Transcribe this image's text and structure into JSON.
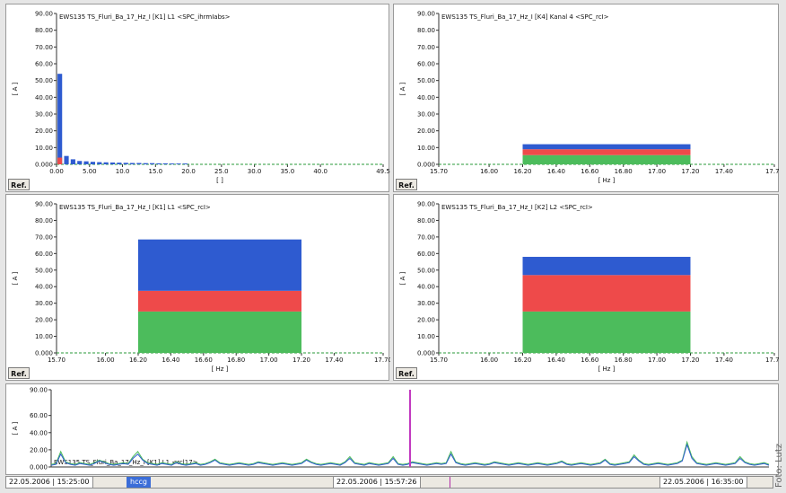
{
  "colors": {
    "blue": "#2e5bd0",
    "red": "#ee4a4a",
    "green": "#4cbc5c",
    "cursor": "#c23ac0",
    "zero_line": "#2a9a3a"
  },
  "ref_label": "Ref.",
  "side_credit": "Foto: Lutz",
  "panels": [
    {
      "id": "harmonics",
      "title": "EWS135  TS_Fluri_Ba_17_Hz_I  [K1] L1   <SPC_ihrmIabs>",
      "ylabel": "[ A ]",
      "xlabel": "[ ]",
      "yticks": [
        "90.00",
        "80.00",
        "70.00",
        "60.00",
        "50.00",
        "40.00",
        "30.00",
        "20.00",
        "10.00",
        "0.000"
      ],
      "xticks": [
        "0.00",
        "5.00",
        "10.0",
        "15.0",
        "20.0",
        "25.0",
        "30.0",
        "35.0",
        "40.0",
        "49.5"
      ],
      "xlim": [
        0,
        49.5
      ],
      "ylim": [
        0,
        90
      ],
      "chart_data": {
        "type": "bar",
        "x": [
          0.5,
          1.5,
          2.5,
          3.5,
          4.5,
          5.5,
          6.5,
          7.5,
          8.5,
          9.5,
          10.5,
          11.5,
          12.5,
          13.5,
          14.5,
          15.5,
          16.5,
          17.5,
          18.5,
          19.5
        ],
        "values": [
          54,
          5,
          3,
          2,
          1.8,
          1.5,
          1.3,
          1.2,
          1.1,
          1.0,
          0.9,
          0.8,
          0.8,
          0.7,
          0.7,
          0.6,
          0.6,
          0.5,
          0.5,
          0.5
        ],
        "ylim": [
          0,
          90
        ]
      }
    },
    {
      "id": "kanal4",
      "title": "EWS135  TS_Fluri_Ba_17_Hz_I  [K4] Kanal 4   <SPC_rcI>",
      "ylabel": "[ A ]",
      "xlabel": "[ Hz ]",
      "yticks": [
        "90.00",
        "80.00",
        "70.00",
        "60.00",
        "50.00",
        "40.00",
        "30.00",
        "20.00",
        "10.00",
        "0.000"
      ],
      "xticks": [
        "15.70",
        "16.00",
        "16.20",
        "16.40",
        "16.60",
        "16.80",
        "17.00",
        "17.20",
        "17.40",
        "17.70"
      ],
      "xlim": [
        15.7,
        17.7
      ],
      "ylim": [
        0,
        90
      ],
      "chart_data": {
        "type": "bar",
        "x_range": [
          16.2,
          17.2
        ],
        "stack": [
          {
            "color": "green",
            "value": 5.5
          },
          {
            "color": "red",
            "value": 3.5
          },
          {
            "color": "blue",
            "value": 3
          }
        ],
        "ylim": [
          0,
          90
        ]
      }
    },
    {
      "id": "l1",
      "title": "EWS135  TS_Fluri_Ba_17_Hz_I  [K1] L1   <SPC_rcI>",
      "ylabel": "[ A ]",
      "xlabel": "[ Hz ]",
      "yticks": [
        "90.00",
        "80.00",
        "70.00",
        "60.00",
        "50.00",
        "40.00",
        "30.00",
        "20.00",
        "10.00",
        "0.000"
      ],
      "xticks": [
        "15.70",
        "16.00",
        "16.20",
        "16.40",
        "16.60",
        "16.80",
        "17.00",
        "17.20",
        "17.40",
        "17.70"
      ],
      "xlim": [
        15.7,
        17.7
      ],
      "ylim": [
        0,
        90
      ],
      "chart_data": {
        "type": "bar",
        "x_range": [
          16.2,
          17.2
        ],
        "stack": [
          {
            "color": "green",
            "value": 25
          },
          {
            "color": "red",
            "value": 12.5
          },
          {
            "color": "blue",
            "value": 31
          }
        ],
        "ylim": [
          0,
          90
        ]
      }
    },
    {
      "id": "l2",
      "title": "EWS135  TS_Fluri_Ba_17_Hz_I  [K2] L2   <SPC_rcI>",
      "ylabel": "[ A ]",
      "xlabel": "[ Hz ]",
      "yticks": [
        "90.00",
        "80.00",
        "70.00",
        "60.00",
        "50.00",
        "40.00",
        "30.00",
        "20.00",
        "10.00",
        "0.000"
      ],
      "xticks": [
        "15.70",
        "16.00",
        "16.20",
        "16.40",
        "16.60",
        "16.80",
        "17.00",
        "17.20",
        "17.40",
        "17.70"
      ],
      "xlim": [
        15.7,
        17.7
      ],
      "ylim": [
        0,
        90
      ],
      "chart_data": {
        "type": "bar",
        "x_range": [
          16.2,
          17.2
        ],
        "stack": [
          {
            "color": "green",
            "value": 25
          },
          {
            "color": "red",
            "value": 22
          },
          {
            "color": "blue",
            "value": 11
          }
        ],
        "ylim": [
          0,
          90
        ]
      }
    }
  ],
  "trend": {
    "title": "EWS135  TS_Fluri_Ba_17_Hz_I  [K1] L1   <rcl17>",
    "ylabel": "[ A ]",
    "yticks": [
      "90.00",
      "60.00",
      "40.00",
      "20.00",
      "0.000"
    ],
    "ylim": [
      0,
      90
    ],
    "chart_data": {
      "type": "line",
      "series": [
        {
          "color": "green",
          "values": [
            3,
            4,
            18,
            6,
            4,
            3,
            5,
            4,
            3,
            5,
            8,
            6,
            4,
            3,
            4,
            5,
            4,
            12,
            18,
            9,
            5,
            4,
            3,
            5,
            4,
            3,
            6,
            4,
            3,
            4,
            5,
            3,
            4,
            6,
            9,
            5,
            4,
            3,
            4,
            5,
            4,
            3,
            4,
            6,
            5,
            4,
            3,
            4,
            5,
            4,
            3,
            4,
            5,
            9,
            6,
            4,
            3,
            4,
            5,
            4,
            3,
            6,
            12,
            5,
            4,
            3,
            5,
            4,
            3,
            4,
            5,
            12,
            4,
            3,
            4,
            6,
            5,
            4,
            3,
            4,
            5,
            4,
            5,
            18,
            6,
            4,
            3,
            4,
            5,
            4,
            3,
            4,
            6,
            5,
            4,
            3,
            4,
            5,
            4,
            3,
            4,
            5,
            4,
            3,
            4,
            5,
            7,
            4,
            3,
            4,
            5,
            4,
            3,
            4,
            5,
            9,
            4,
            3,
            4,
            5,
            6,
            14,
            8,
            4,
            3,
            4,
            5,
            4,
            3,
            4,
            5,
            8,
            29,
            12,
            5,
            4,
            3,
            4,
            5,
            4,
            3,
            4,
            5,
            12,
            6,
            4,
            3,
            4,
            5,
            3
          ]
        },
        {
          "color": "blue",
          "values": [
            2,
            3,
            15,
            5,
            3,
            2,
            4,
            3,
            2,
            4,
            7,
            5,
            3,
            2,
            3,
            4,
            3,
            10,
            15,
            8,
            4,
            3,
            2,
            4,
            3,
            2,
            5,
            3,
            2,
            3,
            4,
            2,
            3,
            5,
            8,
            4,
            3,
            2,
            3,
            4,
            3,
            2,
            3,
            5,
            4,
            3,
            2,
            3,
            4,
            3,
            2,
            3,
            4,
            8,
            5,
            3,
            2,
            3,
            4,
            3,
            2,
            5,
            10,
            4,
            3,
            2,
            4,
            3,
            2,
            3,
            4,
            10,
            3,
            2,
            3,
            5,
            4,
            3,
            2,
            3,
            4,
            3,
            4,
            15,
            5,
            3,
            2,
            3,
            4,
            3,
            2,
            3,
            5,
            4,
            3,
            2,
            3,
            4,
            3,
            2,
            3,
            4,
            3,
            2,
            3,
            4,
            6,
            3,
            2,
            3,
            4,
            3,
            2,
            3,
            4,
            8,
            3,
            2,
            3,
            4,
            5,
            12,
            7,
            3,
            2,
            3,
            4,
            3,
            2,
            3,
            4,
            7,
            26,
            10,
            4,
            3,
            2,
            3,
            4,
            3,
            2,
            3,
            4,
            10,
            5,
            3,
            2,
            3,
            4,
            2
          ]
        }
      ],
      "spike": {
        "position": 0.5,
        "value": 90
      },
      "ylim": [
        0,
        90
      ]
    }
  },
  "timebar": {
    "start": "22.05.2006 | 15:25:00",
    "cursor_label": "hccg",
    "middle": "22.05.2006 | 15:57:26",
    "end": "22.05.2006 | 16:35:00"
  }
}
